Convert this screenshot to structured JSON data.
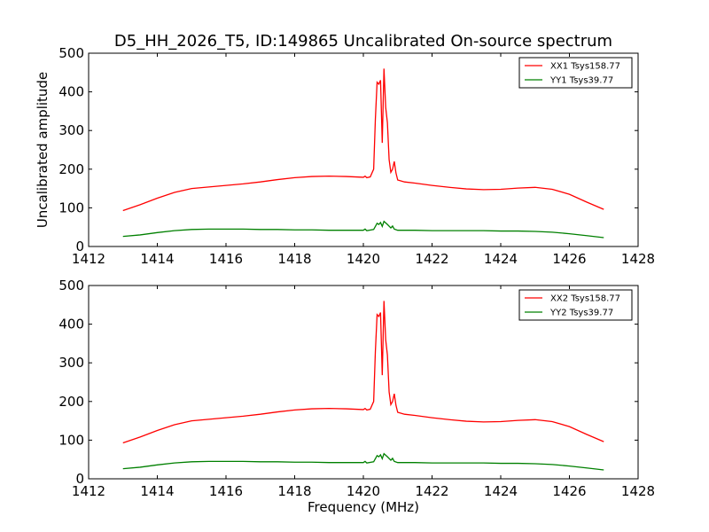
{
  "chart_data": [
    {
      "type": "line",
      "title": "D5_HH_2026_T5, ID:149865 Uncalibrated On-source spectrum",
      "xlabel": "",
      "ylabel": "Uncalibrated amplitude",
      "xlim": [
        1412,
        1428
      ],
      "ylim": [
        0,
        500
      ],
      "xticks": [
        "1412",
        "1414",
        "1416",
        "1418",
        "1420",
        "1422",
        "1424",
        "1426",
        "1428"
      ],
      "yticks": [
        "0",
        "100",
        "200",
        "300",
        "400",
        "500"
      ],
      "legend_position": "top-right",
      "series": [
        {
          "name": "XX1 Tsys158.77",
          "color": "#ff0000",
          "points": [
            [
              1413.0,
              93
            ],
            [
              1413.5,
              108
            ],
            [
              1414.0,
              125
            ],
            [
              1414.5,
              140
            ],
            [
              1415.0,
              150
            ],
            [
              1415.5,
              154
            ],
            [
              1416.0,
              158
            ],
            [
              1416.5,
              162
            ],
            [
              1417.0,
              167
            ],
            [
              1417.5,
              173
            ],
            [
              1418.0,
              178
            ],
            [
              1418.5,
              181
            ],
            [
              1419.0,
              182
            ],
            [
              1419.5,
              181
            ],
            [
              1420.0,
              179
            ],
            [
              1420.05,
              182
            ],
            [
              1420.1,
              178
            ],
            [
              1420.2,
              180
            ],
            [
              1420.3,
              200
            ],
            [
              1420.35,
              330
            ],
            [
              1420.4,
              425
            ],
            [
              1420.45,
              420
            ],
            [
              1420.5,
              430
            ],
            [
              1420.55,
              268
            ],
            [
              1420.6,
              460
            ],
            [
              1420.65,
              360
            ],
            [
              1420.7,
              320
            ],
            [
              1420.75,
              225
            ],
            [
              1420.8,
              192
            ],
            [
              1420.85,
              200
            ],
            [
              1420.9,
              220
            ],
            [
              1420.95,
              190
            ],
            [
              1421.0,
              172
            ],
            [
              1421.2,
              167
            ],
            [
              1421.5,
              164
            ],
            [
              1422.0,
              158
            ],
            [
              1422.5,
              153
            ],
            [
              1423.0,
              149
            ],
            [
              1423.5,
              147
            ],
            [
              1424.0,
              148
            ],
            [
              1424.5,
              151
            ],
            [
              1425.0,
              153
            ],
            [
              1425.5,
              148
            ],
            [
              1426.0,
              135
            ],
            [
              1426.5,
              115
            ],
            [
              1427.0,
              96
            ]
          ]
        },
        {
          "name": "YY1 Tsys39.77",
          "color": "#008000",
          "points": [
            [
              1413.0,
              26
            ],
            [
              1413.5,
              30
            ],
            [
              1414.0,
              36
            ],
            [
              1414.5,
              41
            ],
            [
              1415.0,
              44
            ],
            [
              1415.5,
              45
            ],
            [
              1416.0,
              45
            ],
            [
              1416.5,
              45
            ],
            [
              1417.0,
              44
            ],
            [
              1417.5,
              44
            ],
            [
              1418.0,
              43
            ],
            [
              1418.5,
              43
            ],
            [
              1419.0,
              42
            ],
            [
              1419.5,
              42
            ],
            [
              1420.0,
              42
            ],
            [
              1420.05,
              45
            ],
            [
              1420.1,
              41
            ],
            [
              1420.3,
              44
            ],
            [
              1420.4,
              60
            ],
            [
              1420.45,
              57
            ],
            [
              1420.5,
              62
            ],
            [
              1420.55,
              52
            ],
            [
              1420.6,
              65
            ],
            [
              1420.7,
              57
            ],
            [
              1420.8,
              48
            ],
            [
              1420.85,
              53
            ],
            [
              1420.9,
              45
            ],
            [
              1421.0,
              42
            ],
            [
              1421.5,
              42
            ],
            [
              1422.0,
              41
            ],
            [
              1422.5,
              41
            ],
            [
              1423.0,
              41
            ],
            [
              1423.5,
              41
            ],
            [
              1424.0,
              40
            ],
            [
              1424.5,
              40
            ],
            [
              1425.0,
              39
            ],
            [
              1425.5,
              37
            ],
            [
              1426.0,
              33
            ],
            [
              1426.5,
              28
            ],
            [
              1427.0,
              23
            ]
          ]
        }
      ]
    },
    {
      "type": "line",
      "title": "",
      "xlabel": "Frequency (MHz)",
      "ylabel": "",
      "xlim": [
        1412,
        1428
      ],
      "ylim": [
        0,
        500
      ],
      "xticks": [
        "1412",
        "1414",
        "1416",
        "1418",
        "1420",
        "1422",
        "1424",
        "1426",
        "1428"
      ],
      "yticks": [
        "0",
        "100",
        "200",
        "300",
        "400",
        "500"
      ],
      "legend_position": "top-right",
      "series": [
        {
          "name": "XX2 Tsys158.77",
          "color": "#ff0000",
          "points": [
            [
              1413.0,
              93
            ],
            [
              1413.5,
              108
            ],
            [
              1414.0,
              125
            ],
            [
              1414.5,
              140
            ],
            [
              1415.0,
              150
            ],
            [
              1415.5,
              154
            ],
            [
              1416.0,
              158
            ],
            [
              1416.5,
              162
            ],
            [
              1417.0,
              167
            ],
            [
              1417.5,
              173
            ],
            [
              1418.0,
              178
            ],
            [
              1418.5,
              181
            ],
            [
              1419.0,
              182
            ],
            [
              1419.5,
              181
            ],
            [
              1420.0,
              179
            ],
            [
              1420.05,
              182
            ],
            [
              1420.1,
              178
            ],
            [
              1420.2,
              180
            ],
            [
              1420.3,
              200
            ],
            [
              1420.35,
              330
            ],
            [
              1420.4,
              425
            ],
            [
              1420.45,
              420
            ],
            [
              1420.5,
              430
            ],
            [
              1420.55,
              268
            ],
            [
              1420.6,
              460
            ],
            [
              1420.65,
              360
            ],
            [
              1420.7,
              320
            ],
            [
              1420.75,
              225
            ],
            [
              1420.8,
              192
            ],
            [
              1420.85,
              200
            ],
            [
              1420.9,
              220
            ],
            [
              1420.95,
              190
            ],
            [
              1421.0,
              172
            ],
            [
              1421.2,
              167
            ],
            [
              1421.5,
              164
            ],
            [
              1422.0,
              158
            ],
            [
              1422.5,
              153
            ],
            [
              1423.0,
              149
            ],
            [
              1423.5,
              147
            ],
            [
              1424.0,
              148
            ],
            [
              1424.5,
              151
            ],
            [
              1425.0,
              153
            ],
            [
              1425.5,
              148
            ],
            [
              1426.0,
              135
            ],
            [
              1426.5,
              115
            ],
            [
              1427.0,
              96
            ]
          ]
        },
        {
          "name": "YY2 Tsys39.77",
          "color": "#008000",
          "points": [
            [
              1413.0,
              26
            ],
            [
              1413.5,
              30
            ],
            [
              1414.0,
              36
            ],
            [
              1414.5,
              41
            ],
            [
              1415.0,
              44
            ],
            [
              1415.5,
              45
            ],
            [
              1416.0,
              45
            ],
            [
              1416.5,
              45
            ],
            [
              1417.0,
              44
            ],
            [
              1417.5,
              44
            ],
            [
              1418.0,
              43
            ],
            [
              1418.5,
              43
            ],
            [
              1419.0,
              42
            ],
            [
              1419.5,
              42
            ],
            [
              1420.0,
              42
            ],
            [
              1420.05,
              45
            ],
            [
              1420.1,
              41
            ],
            [
              1420.3,
              44
            ],
            [
              1420.4,
              60
            ],
            [
              1420.45,
              57
            ],
            [
              1420.5,
              62
            ],
            [
              1420.55,
              52
            ],
            [
              1420.6,
              65
            ],
            [
              1420.7,
              57
            ],
            [
              1420.8,
              48
            ],
            [
              1420.85,
              53
            ],
            [
              1420.9,
              45
            ],
            [
              1421.0,
              42
            ],
            [
              1421.5,
              42
            ],
            [
              1422.0,
              41
            ],
            [
              1422.5,
              41
            ],
            [
              1423.0,
              41
            ],
            [
              1423.5,
              41
            ],
            [
              1424.0,
              40
            ],
            [
              1424.5,
              40
            ],
            [
              1425.0,
              39
            ],
            [
              1425.5,
              37
            ],
            [
              1426.0,
              33
            ],
            [
              1426.5,
              28
            ],
            [
              1427.0,
              23
            ]
          ]
        }
      ]
    }
  ]
}
